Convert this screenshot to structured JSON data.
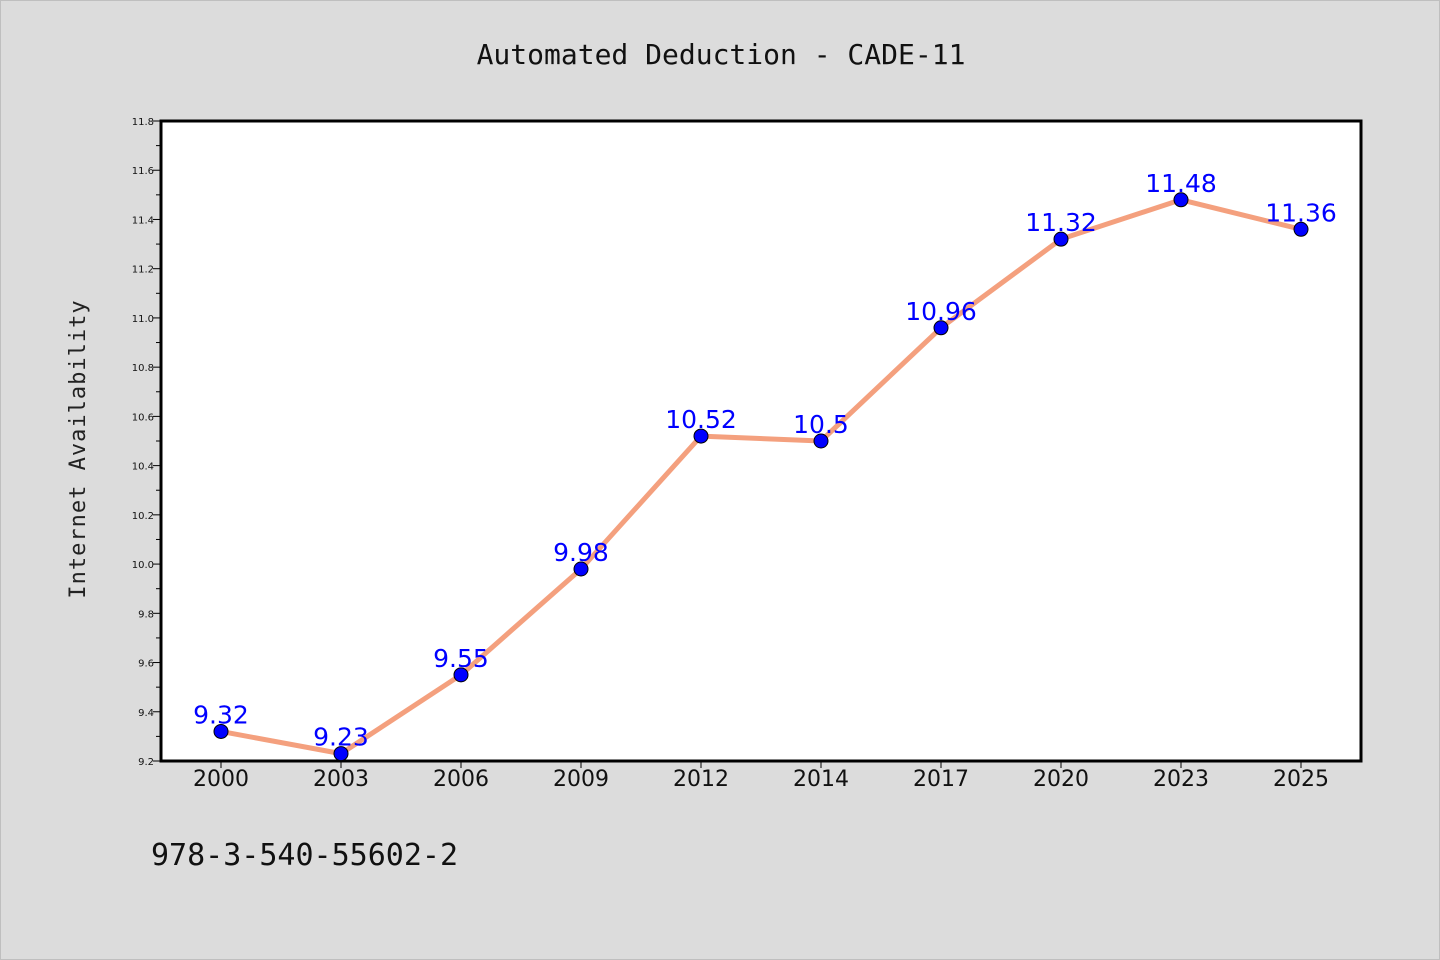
{
  "chart_data": {
    "type": "line",
    "title": "Automated Deduction - CADE-11",
    "xlabel": "",
    "ylabel": "Internet Availability",
    "categories": [
      "2000",
      "2003",
      "2006",
      "2009",
      "2012",
      "2014",
      "2017",
      "2020",
      "2023",
      "2025"
    ],
    "series": [
      {
        "values": [
          9.32,
          9.23,
          9.55,
          9.98,
          10.52,
          10.5,
          10.96,
          11.32,
          11.48,
          11.36
        ],
        "labels": [
          "9.32",
          "9.23",
          "9.55",
          "9.98",
          "10.52",
          "10.5",
          "10.96",
          "11.32",
          "11.48",
          "11.36"
        ],
        "line_color": "#f4a07e",
        "marker_color": "#0000ff"
      }
    ],
    "ylim": [
      9.2,
      11.8
    ],
    "y_ticks": [
      "9.2",
      "9.4",
      "9.6",
      "9.8",
      "10.0",
      "10.2",
      "10.4",
      "10.6",
      "10.8",
      "11.0",
      "11.2",
      "11.4",
      "11.6",
      "11.8"
    ],
    "grid": false,
    "legend": "none"
  },
  "footer": {
    "isbn": "978-3-540-55602-2"
  },
  "colors": {
    "background": "#dcdcdc",
    "plot_background": "#ffffff",
    "line": "#f4a07e",
    "marker": "#0000ff",
    "data_label": "#0000ff"
  }
}
